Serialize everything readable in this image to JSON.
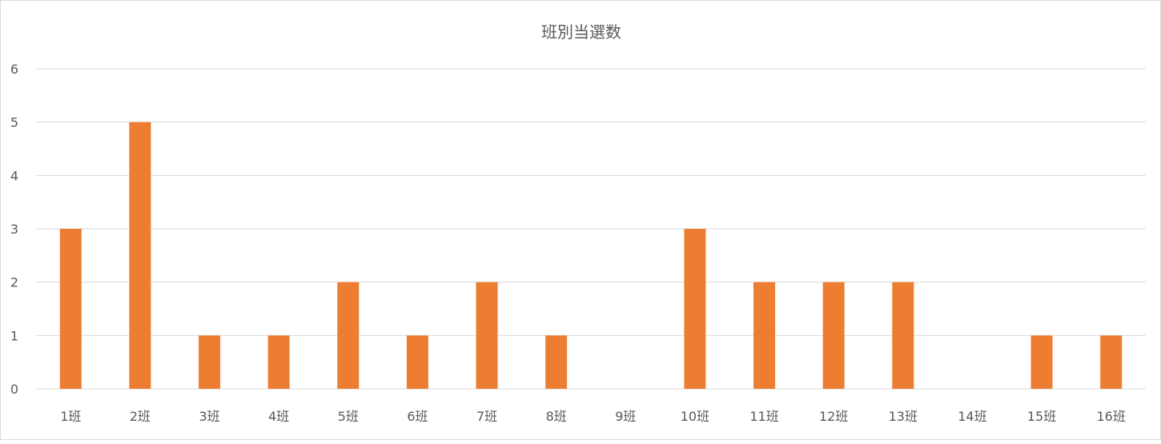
{
  "chart_data": {
    "type": "bar",
    "title": "班別当選数",
    "categories": [
      "1班",
      "2班",
      "3班",
      "4班",
      "5班",
      "6班",
      "7班",
      "8班",
      "9班",
      "10班",
      "11班",
      "12班",
      "13班",
      "14班",
      "15班",
      "16班"
    ],
    "values": [
      3,
      5,
      1,
      1,
      2,
      1,
      2,
      1,
      0,
      3,
      2,
      2,
      2,
      0,
      1,
      1
    ],
    "xlabel": "",
    "ylabel": "",
    "ylim": [
      0,
      6
    ],
    "yticks": [
      0,
      1,
      2,
      3,
      4,
      5,
      6
    ],
    "grid": true,
    "legend": "none",
    "bar_color": "#ED7D31",
    "grid_color": "#D9D9D9"
  }
}
